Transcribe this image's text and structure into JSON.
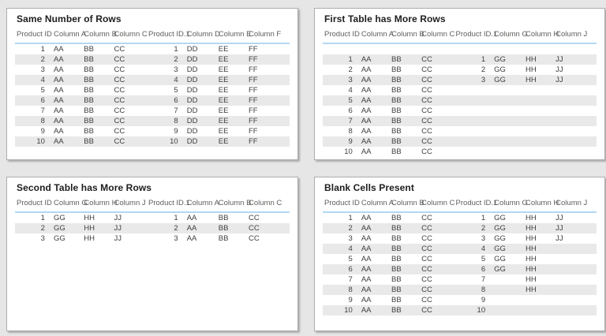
{
  "report": {
    "canvas_background": "#e6e6e6",
    "card_background": "#ffffff",
    "card_border": "#adadad",
    "header_divider": "#b2d8f2",
    "row_stripe": "#e9e9e9"
  },
  "cards": [
    {
      "title": "Same Number of Rows",
      "columns": [
        "Product ID",
        "Column A",
        "Column B",
        "Column C",
        "Product ID.1",
        "Column D",
        "Column E",
        "Column F"
      ],
      "rows": [
        [
          "1",
          "AA",
          "BB",
          "CC",
          "1",
          "DD",
          "EE",
          "FF"
        ],
        [
          "2",
          "AA",
          "BB",
          "CC",
          "2",
          "DD",
          "EE",
          "FF"
        ],
        [
          "3",
          "AA",
          "BB",
          "CC",
          "3",
          "DD",
          "EE",
          "FF"
        ],
        [
          "4",
          "AA",
          "BB",
          "CC",
          "4",
          "DD",
          "EE",
          "FF"
        ],
        [
          "5",
          "AA",
          "BB",
          "CC",
          "5",
          "DD",
          "EE",
          "FF"
        ],
        [
          "6",
          "AA",
          "BB",
          "CC",
          "6",
          "DD",
          "EE",
          "FF"
        ],
        [
          "7",
          "AA",
          "BB",
          "CC",
          "7",
          "DD",
          "EE",
          "FF"
        ],
        [
          "8",
          "AA",
          "BB",
          "CC",
          "8",
          "DD",
          "EE",
          "FF"
        ],
        [
          "9",
          "AA",
          "BB",
          "CC",
          "9",
          "DD",
          "EE",
          "FF"
        ],
        [
          "10",
          "AA",
          "BB",
          "CC",
          "10",
          "DD",
          "EE",
          "FF"
        ]
      ]
    },
    {
      "title": "First Table has More Rows",
      "columns": [
        "Product ID",
        "Column A",
        "Column B",
        "Column C",
        "Product ID.1",
        "Column G",
        "Column H",
        "Column J"
      ],
      "rows": [
        [
          "",
          "",
          "",
          "",
          "",
          "",
          "",
          ""
        ],
        [
          "1",
          "AA",
          "BB",
          "CC",
          "1",
          "GG",
          "HH",
          "JJ"
        ],
        [
          "2",
          "AA",
          "BB",
          "CC",
          "2",
          "GG",
          "HH",
          "JJ"
        ],
        [
          "3",
          "AA",
          "BB",
          "CC",
          "3",
          "GG",
          "HH",
          "JJ"
        ],
        [
          "4",
          "AA",
          "BB",
          "CC",
          "",
          "",
          "",
          ""
        ],
        [
          "5",
          "AA",
          "BB",
          "CC",
          "",
          "",
          "",
          ""
        ],
        [
          "6",
          "AA",
          "BB",
          "CC",
          "",
          "",
          "",
          ""
        ],
        [
          "7",
          "AA",
          "BB",
          "CC",
          "",
          "",
          "",
          ""
        ],
        [
          "8",
          "AA",
          "BB",
          "CC",
          "",
          "",
          "",
          ""
        ],
        [
          "9",
          "AA",
          "BB",
          "CC",
          "",
          "",
          "",
          ""
        ],
        [
          "10",
          "AA",
          "BB",
          "CC",
          "",
          "",
          "",
          ""
        ]
      ]
    },
    {
      "title": "Second Table has More Rows",
      "columns": [
        "Product ID",
        "Column G",
        "Column H",
        "Column J",
        "Product ID.1",
        "Column A",
        "Column B",
        "Column C"
      ],
      "rows": [
        [
          "1",
          "GG",
          "HH",
          "JJ",
          "1",
          "AA",
          "BB",
          "CC"
        ],
        [
          "2",
          "GG",
          "HH",
          "JJ",
          "2",
          "AA",
          "BB",
          "CC"
        ],
        [
          "3",
          "GG",
          "HH",
          "JJ",
          "3",
          "AA",
          "BB",
          "CC"
        ]
      ]
    },
    {
      "title": "Blank Cells Present",
      "columns": [
        "Product ID",
        "Column A",
        "Column B",
        "Column C",
        "Product ID.1",
        "Column G",
        "Column H",
        "Column J"
      ],
      "rows": [
        [
          "1",
          "AA",
          "BB",
          "CC",
          "1",
          "GG",
          "HH",
          "JJ"
        ],
        [
          "2",
          "AA",
          "BB",
          "CC",
          "2",
          "GG",
          "HH",
          "JJ"
        ],
        [
          "3",
          "AA",
          "BB",
          "CC",
          "3",
          "GG",
          "HH",
          "JJ"
        ],
        [
          "4",
          "AA",
          "BB",
          "CC",
          "4",
          "GG",
          "HH",
          ""
        ],
        [
          "5",
          "AA",
          "BB",
          "CC",
          "5",
          "GG",
          "HH",
          ""
        ],
        [
          "6",
          "AA",
          "BB",
          "CC",
          "6",
          "GG",
          "HH",
          ""
        ],
        [
          "7",
          "AA",
          "BB",
          "CC",
          "7",
          "",
          "HH",
          ""
        ],
        [
          "8",
          "AA",
          "BB",
          "CC",
          "8",
          "",
          "HH",
          ""
        ],
        [
          "9",
          "AA",
          "BB",
          "CC",
          "9",
          "",
          "",
          ""
        ],
        [
          "10",
          "AA",
          "BB",
          "CC",
          "10",
          "",
          "",
          ""
        ]
      ]
    }
  ]
}
